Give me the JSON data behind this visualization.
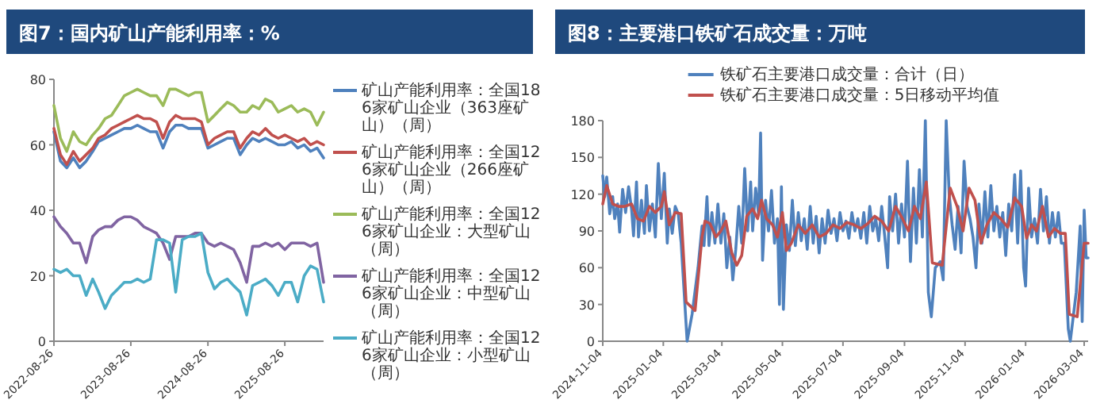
{
  "chart_data": [
    {
      "type": "line",
      "title": "图7：国内矿山产能利用率：%",
      "legend": "right",
      "x": [
        "2022-08-26",
        "2022-09-26",
        "2022-10-26",
        "2022-11-26",
        "2022-12-26",
        "2023-01-26",
        "2023-02-26",
        "2023-03-26",
        "2023-04-26",
        "2023-05-26",
        "2023-06-26",
        "2023-07-26",
        "2023-08-26",
        "2023-09-26",
        "2023-10-26",
        "2023-11-26",
        "2023-12-26",
        "2024-01-26",
        "2024-02-26",
        "2024-03-26",
        "2024-04-26",
        "2024-05-26",
        "2024-06-26",
        "2024-07-26",
        "2024-08-26",
        "2024-09-26",
        "2024-10-26",
        "2024-11-26",
        "2024-12-26",
        "2025-01-26",
        "2025-02-26",
        "2025-03-26",
        "2025-04-26",
        "2025-05-26",
        "2025-06-26",
        "2025-07-26",
        "2025-08-26",
        "2025-09-26",
        "2025-10-26",
        "2025-11-26",
        "2025-12-26",
        "2026-01-26",
        "2026-02-26"
      ],
      "xlim": [
        "2022-08-26",
        "2026-02-26"
      ],
      "xticks": [
        "2022-08-26",
        "2023-08-26",
        "2024-08-26",
        "2025-08-26"
      ],
      "ylim": [
        0,
        80
      ],
      "yticks": [
        0,
        20,
        40,
        60,
        80
      ],
      "series": [
        {
          "name": "矿山产能利用率：全国186家矿山企业（363座矿山）（周）",
          "color": "#4f81bd",
          "values": [
            64,
            55,
            53,
            56,
            53,
            55,
            58,
            61,
            62,
            63,
            64,
            65,
            65,
            66,
            65,
            64,
            64,
            59,
            64,
            66,
            66,
            65,
            65,
            65,
            59,
            60,
            61,
            62,
            62,
            57,
            60,
            62,
            61,
            62,
            61,
            60,
            60,
            61,
            59,
            60,
            58,
            59,
            56
          ]
        },
        {
          "name": "矿山产能利用率：全国126家矿山企业（266座矿山）（周）",
          "color": "#c0504d",
          "values": [
            65,
            57,
            54,
            58,
            55,
            57,
            59,
            62,
            63,
            65,
            66,
            67,
            68,
            69,
            68,
            68,
            67,
            62,
            67,
            69,
            68,
            68,
            68,
            67,
            60,
            62,
            63,
            64,
            64,
            59,
            62,
            64,
            63,
            65,
            63,
            62,
            63,
            62,
            61,
            62,
            60,
            61,
            60
          ]
        },
        {
          "name": "矿山产能利用率：全国126家矿山企业：大型矿山（周）",
          "color": "#9bbb59",
          "values": [
            72,
            62,
            58,
            64,
            61,
            60,
            63,
            65,
            68,
            69,
            72,
            75,
            76,
            77,
            76,
            75,
            75,
            72,
            77,
            77,
            76,
            75,
            76,
            76,
            67,
            69,
            71,
            73,
            72,
            70,
            70,
            72,
            71,
            74,
            73,
            70,
            71,
            72,
            70,
            71,
            70,
            66,
            70
          ]
        },
        {
          "name": "矿山产能利用率：全国126家矿山企业：中型矿山（周）",
          "color": "#8064a2",
          "values": [
            38,
            35,
            33,
            30,
            30,
            24,
            32,
            34,
            35,
            35,
            37,
            38,
            38,
            37,
            35,
            34,
            33,
            30,
            25,
            32,
            32,
            32,
            33,
            33,
            30,
            29,
            30,
            29,
            28,
            24,
            18,
            29,
            29,
            30,
            29,
            30,
            28,
            30,
            30,
            30,
            29,
            30,
            18
          ]
        },
        {
          "name": "矿山产能利用率：全国126家矿山企业：小型矿山（周）",
          "color": "#4bacc6",
          "values": [
            22,
            21,
            22,
            20,
            20,
            14,
            19,
            15,
            10,
            14,
            16,
            18,
            18,
            19,
            18,
            19,
            31,
            31,
            30,
            15,
            31,
            32,
            32,
            33,
            21,
            16,
            18,
            19,
            17,
            15,
            8,
            17,
            18,
            19,
            17,
            14,
            18,
            18,
            12,
            20,
            23,
            22,
            12
          ]
        }
      ]
    },
    {
      "type": "line",
      "title": "图8：主要港口铁矿石成交量：万吨",
      "legend": "top",
      "xlim": [
        "2024-11-04",
        "2026-03-08"
      ],
      "xticks": [
        "2024-11-04",
        "2025-01-04",
        "2025-03-04",
        "2025-05-04",
        "2025-07-04",
        "2025-09-04",
        "2025-11-04",
        "2026-01-04",
        "2026-03-04"
      ],
      "ylim": [
        0,
        180
      ],
      "yticks": [
        0,
        30,
        60,
        90,
        120,
        150,
        180
      ],
      "series": [
        {
          "name": "铁矿石主要港口成交量：合计（日）",
          "color": "#4f81bd",
          "x": [
            "2024-11-04",
            "2024-11-06",
            "2024-11-08",
            "2024-11-11",
            "2024-11-14",
            "2024-11-16",
            "2024-11-19",
            "2024-11-21",
            "2024-11-24",
            "2024-11-27",
            "2024-11-30",
            "2024-12-03",
            "2024-12-05",
            "2024-12-08",
            "2024-12-10",
            "2024-12-13",
            "2024-12-16",
            "2024-12-18",
            "2024-12-21",
            "2024-12-24",
            "2024-12-27",
            "2024-12-30",
            "2025-01-02",
            "2025-01-05",
            "2025-01-08",
            "2025-01-10",
            "2025-01-13",
            "2025-01-16",
            "2025-01-19",
            "2025-01-22",
            "2025-01-25",
            "2025-01-28",
            "2025-02-02",
            "2025-02-08",
            "2025-02-12",
            "2025-02-14",
            "2025-02-17",
            "2025-02-19",
            "2025-02-22",
            "2025-02-25",
            "2025-02-28",
            "2025-03-03",
            "2025-03-06",
            "2025-03-09",
            "2025-03-12",
            "2025-03-15",
            "2025-03-18",
            "2025-03-21",
            "2025-03-24",
            "2025-03-27",
            "2025-03-30",
            "2025-04-02",
            "2025-04-04",
            "2025-04-07",
            "2025-04-10",
            "2025-04-12",
            "2025-04-14",
            "2025-04-17",
            "2025-04-20",
            "2025-04-23",
            "2025-04-26",
            "2025-04-29",
            "2025-05-01",
            "2025-05-03",
            "2025-05-05",
            "2025-05-08",
            "2025-05-11",
            "2025-05-14",
            "2025-05-17",
            "2025-05-20",
            "2025-05-23",
            "2025-05-26",
            "2025-05-29",
            "2025-06-01",
            "2025-06-04",
            "2025-06-07",
            "2025-06-10",
            "2025-06-13",
            "2025-06-16",
            "2025-06-19",
            "2025-06-22",
            "2025-06-25",
            "2025-06-28",
            "2025-07-01",
            "2025-07-04",
            "2025-07-07",
            "2025-07-10",
            "2025-07-13",
            "2025-07-16",
            "2025-07-19",
            "2025-07-22",
            "2025-07-25",
            "2025-07-28",
            "2025-07-31",
            "2025-08-03",
            "2025-08-06",
            "2025-08-09",
            "2025-08-12",
            "2025-08-15",
            "2025-08-18",
            "2025-08-20",
            "2025-08-23",
            "2025-08-26",
            "2025-08-29",
            "2025-09-01",
            "2025-09-04",
            "2025-09-07",
            "2025-09-10",
            "2025-09-13",
            "2025-09-16",
            "2025-09-19",
            "2025-09-22",
            "2025-09-25",
            "2025-09-28",
            "2025-10-01",
            "2025-10-05",
            "2025-10-10",
            "2025-10-13",
            "2025-10-16",
            "2025-10-19",
            "2025-10-22",
            "2025-10-25",
            "2025-10-28",
            "2025-10-31",
            "2025-11-03",
            "2025-11-06",
            "2025-11-09",
            "2025-11-12",
            "2025-11-15",
            "2025-11-18",
            "2025-11-21",
            "2025-11-24",
            "2025-11-27",
            "2025-11-30",
            "2025-12-03",
            "2025-12-06",
            "2025-12-09",
            "2025-12-12",
            "2025-12-15",
            "2025-12-18",
            "2025-12-21",
            "2025-12-24",
            "2025-12-27",
            "2025-12-30",
            "2026-01-02",
            "2026-01-04",
            "2026-01-07",
            "2026-01-10",
            "2026-01-13",
            "2026-01-16",
            "2026-01-19",
            "2026-01-22",
            "2026-01-25",
            "2026-01-28",
            "2026-01-31",
            "2026-02-03",
            "2026-02-06",
            "2026-02-09",
            "2026-02-12",
            "2026-02-16",
            "2026-02-18",
            "2026-02-24",
            "2026-02-28",
            "2026-03-02",
            "2026-03-04",
            "2026-03-06",
            "2026-03-08"
          ],
          "values": [
            135,
            118,
            134,
            104,
            118,
            100,
            112,
            89,
            124,
            105,
            126,
            108,
            86,
            130,
            85,
            115,
            88,
            127,
            90,
            112,
            85,
            145,
            100,
            137,
            80,
            108,
            88,
            110,
            104,
            80,
            40,
            0,
            22,
            60,
            94,
            78,
            118,
            78,
            105,
            80,
            112,
            80,
            104,
            60,
            85,
            50,
            75,
            110,
            80,
            141,
            90,
            130,
            90,
            125,
            103,
            170,
            66,
            115,
            90,
            123,
            80,
            100,
            30,
            126,
            26,
            95,
            74,
            115,
            78,
            105,
            82,
            100,
            75,
            110,
            80,
            102,
            72,
            100,
            80,
            107,
            88,
            100,
            82,
            105,
            90,
            98,
            84,
            105,
            90,
            100,
            84,
            105,
            80,
            110,
            90,
            100,
            82,
            110,
            86,
            60,
            118,
            90,
            120,
            80,
            112,
            85,
            147,
            65,
            125,
            80,
            140,
            85,
            180,
            40,
            20,
            60,
            65,
            50,
            180,
            120,
            95,
            75,
            110,
            72,
            147,
            110,
            100,
            85,
            60,
            112,
            80,
            122,
            85,
            127,
            90,
            110,
            85,
            105,
            70,
            112,
            90,
            136,
            80,
            139,
            60,
            45,
            125,
            85,
            100,
            80,
            124,
            90,
            118,
            80,
            105,
            85,
            105,
            80,
            80,
            10,
            0,
            40,
            94,
            16,
            107,
            68,
            68
          ]
        },
        {
          "name": "铁矿石主要港口成交量：5日移动平均值",
          "color": "#c0504d",
          "x": [
            "2024-11-04",
            "2024-11-08",
            "2024-11-14",
            "2024-11-20",
            "2024-11-26",
            "2024-12-03",
            "2024-12-09",
            "2024-12-15",
            "2024-12-21",
            "2024-12-27",
            "2025-01-02",
            "2025-01-05",
            "2025-01-10",
            "2025-01-16",
            "2025-01-22",
            "2025-01-27",
            "2025-02-05",
            "2025-02-12",
            "2025-02-15",
            "2025-02-20",
            "2025-02-26",
            "2025-03-03",
            "2025-03-08",
            "2025-03-14",
            "2025-03-19",
            "2025-03-24",
            "2025-03-29",
            "2025-04-04",
            "2025-04-09",
            "2025-04-13",
            "2025-04-18",
            "2025-04-24",
            "2025-04-29",
            "2025-05-04",
            "2025-05-08",
            "2025-05-13",
            "2025-05-20",
            "2025-05-27",
            "2025-06-03",
            "2025-06-10",
            "2025-06-17",
            "2025-06-24",
            "2025-07-01",
            "2025-07-08",
            "2025-07-15",
            "2025-07-22",
            "2025-07-29",
            "2025-08-05",
            "2025-08-12",
            "2025-08-19",
            "2025-08-26",
            "2025-09-02",
            "2025-09-08",
            "2025-09-14",
            "2025-09-20",
            "2025-09-26",
            "2025-10-02",
            "2025-10-12",
            "2025-10-20",
            "2025-10-27",
            "2025-11-02",
            "2025-11-08",
            "2025-11-14",
            "2025-11-20",
            "2025-11-26",
            "2025-12-03",
            "2025-12-10",
            "2025-12-17",
            "2025-12-24",
            "2025-12-31",
            "2026-01-05",
            "2026-01-10",
            "2026-01-15",
            "2026-01-21",
            "2026-01-27",
            "2026-02-02",
            "2026-02-08",
            "2026-02-13",
            "2026-02-17",
            "2026-02-25",
            "2026-03-04",
            "2026-03-08"
          ],
          "values": [
            112,
            127,
            112,
            110,
            110,
            112,
            100,
            98,
            110,
            105,
            110,
            122,
            95,
            105,
            104,
            32,
            25,
            85,
            98,
            96,
            85,
            90,
            98,
            72,
            62,
            70,
            102,
            108,
            100,
            115,
            100,
            95,
            85,
            105,
            74,
            80,
            95,
            88,
            95,
            85,
            88,
            95,
            92,
            97,
            95,
            92,
            96,
            102,
            98,
            90,
            110,
            100,
            90,
            110,
            100,
            130,
            64,
            62,
            125,
            110,
            90,
            125,
            115,
            80,
            95,
            105,
            100,
            93,
            117,
            110,
            84,
            95,
            90,
            110,
            85,
            92,
            88,
            88,
            22,
            20,
            80,
            80
          ]
        }
      ]
    }
  ]
}
